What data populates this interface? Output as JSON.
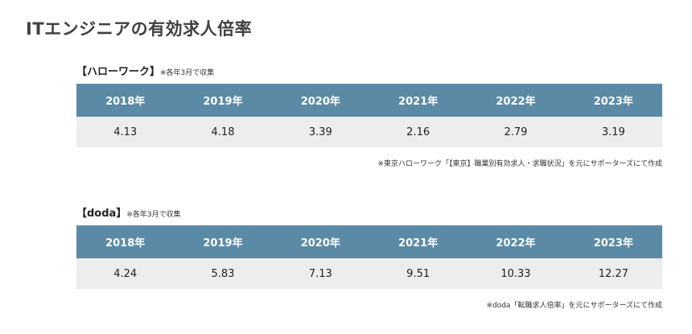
{
  "page": {
    "title": "ITエンジニアの有効求人倍率"
  },
  "sections": [
    {
      "heading": "【ハローワーク】",
      "note": "※各年3月で収集",
      "years": [
        "2018年",
        "2019年",
        "2020年",
        "2021年",
        "2022年",
        "2023年"
      ],
      "values": [
        "4.13",
        "4.18",
        "3.39",
        "2.16",
        "2.79",
        "3.19"
      ],
      "source": "※東京ハローワーク「【東京】職業別有効求人・求職状況」を元にサポーターズにて作成"
    },
    {
      "heading": "【doda】",
      "note": "※各年3月で収集",
      "years": [
        "2018年",
        "2019年",
        "2020年",
        "2021年",
        "2022年",
        "2023年"
      ],
      "values": [
        "4.24",
        "5.83",
        "7.13",
        "9.51",
        "10.33",
        "12.27"
      ],
      "source": "※doda「転職求人倍率」を元にサポーターズにて作成"
    }
  ]
}
